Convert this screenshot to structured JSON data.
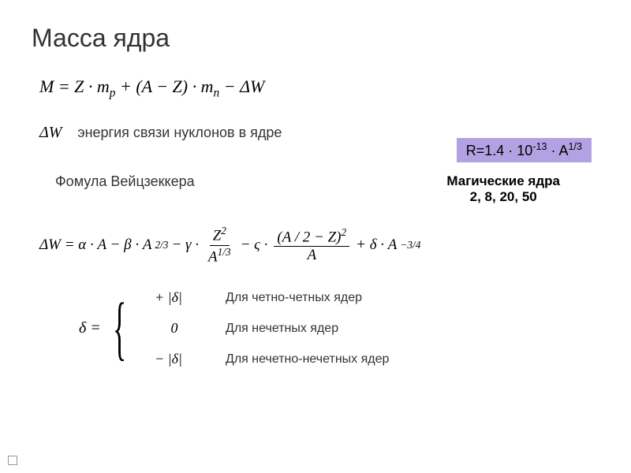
{
  "title": "Масса ядра",
  "main_formula_html": "M = Z · m<span class='sub'>p</span> + (A − Z) · m<span class='sub'>n</span> − ΔW",
  "deltaW_symbol": "ΔW",
  "binding_text": "энергия связи нуклонов в ядре",
  "radius_formula_html": "R=1.4 · 10<span class='sup'>-13</span> · A<span class='sup'>1/3</span>",
  "radius_bg": "#b3a2e3",
  "weizsacker_label": "Фомула Вейцзеккера",
  "magic_title": "Магические ядра",
  "magic_numbers": "2, 8, 20, 50",
  "long_formula": {
    "prefix": "ΔW = α · A − β · A",
    "exp1": "2/3",
    "minus_gamma": " − γ · ",
    "frac1_num": "Z",
    "frac1_num_exp": "2",
    "frac1_den": "A",
    "frac1_den_exp": "1/3",
    "minus_zeta": " − ς · ",
    "frac2_num": "(A / 2 − Z)",
    "frac2_num_exp": "2",
    "frac2_den": "A",
    "plus_delta": " + δ · A",
    "exp_last": "−3/4"
  },
  "delta_eq": "δ  =",
  "cases": [
    {
      "sym": "+ |δ|",
      "text": "Для четно-четных ядер"
    },
    {
      "sym": "0",
      "text": "Для нечетных ядер"
    },
    {
      "sym": "− |δ|",
      "text": "Для нечетно-нечетных ядер"
    }
  ],
  "colors": {
    "title": "#333333",
    "text": "#333333",
    "formula": "#000000",
    "background": "#ffffff"
  },
  "fonts": {
    "title_size": 32,
    "body_size": 18,
    "formula_size": 20
  }
}
